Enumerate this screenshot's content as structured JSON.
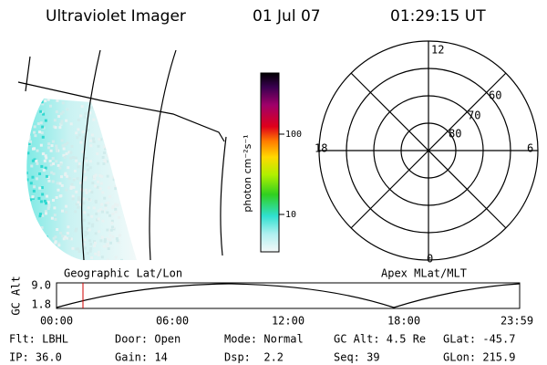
{
  "header": {
    "title": "Ultraviolet Imager",
    "date": "01 Jul 07",
    "time": "01:29:15 UT"
  },
  "colorbar": {
    "label": "photon cm⁻²s⁻¹",
    "ticks": [
      "100",
      "10"
    ]
  },
  "polar": {
    "mlt_labels": [
      "12",
      "18",
      "6",
      "0"
    ],
    "lat_labels": [
      "60",
      "70",
      "80"
    ]
  },
  "altitude_plot": {
    "axis_label": "GC Alt",
    "left_title": "Geographic Lat/Lon",
    "right_title": "Apex MLat/MLT",
    "y_labels": [
      "9.0",
      "1.8"
    ],
    "x_labels": [
      "00:00",
      "06:00",
      "12:00",
      "18:00",
      "23:59"
    ]
  },
  "status": {
    "rows": [
      [
        "Flt: LBHL",
        "Door: Open",
        "Mode: Normal",
        "GC Alt: 4.5 Re",
        "GLat: -45.7"
      ],
      [
        "IP: 36.0",
        "Gain: 14",
        "Dsp:  2.2",
        "Seq: 39",
        "GLon: 215.9"
      ]
    ]
  }
}
